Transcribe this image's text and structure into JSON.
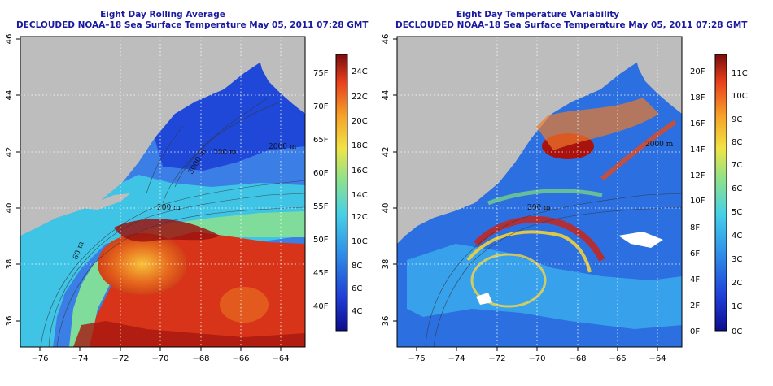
{
  "panels": [
    {
      "id": "rolling",
      "title": "Eight Day Rolling Average",
      "subtitle": "DECLOUDED NOAA–18 Sea Surface Temperature May 05, 2011 07:28 GMT",
      "colorbar_f": [
        "75F",
        "70F",
        "65F",
        "60F",
        "55F",
        "50F",
        "45F",
        "40F"
      ],
      "colorbar_c": [
        "24C",
        "22C",
        "20C",
        "18C",
        "16C",
        "14C",
        "12C",
        "10C",
        "8C",
        "6C",
        "4C"
      ],
      "contour_labels": [
        "2000 m",
        "200 m",
        "60 m",
        "200 m",
        "3000 m"
      ]
    },
    {
      "id": "variability",
      "title": "Eight Day Temperature Variability",
      "subtitle": "DECLOUDED NOAA–18 Sea Surface Temperature May 05, 2011 07:28 GMT",
      "colorbar_f": [
        "20F",
        "18F",
        "16F",
        "14F",
        "12F",
        "10F",
        "8F",
        "6F",
        "4F",
        "2F",
        "0F"
      ],
      "colorbar_c": [
        "11C",
        "10C",
        "9C",
        "8C",
        "7C",
        "6C",
        "5C",
        "4C",
        "3C",
        "2C",
        "1C",
        "0C"
      ],
      "contour_labels": [
        "2000 m",
        "200 m"
      ]
    }
  ],
  "map_axes": {
    "x_ticks": [
      "−76",
      "−74",
      "−72",
      "−70",
      "−68",
      "−66",
      "−64"
    ],
    "y_ticks": [
      "46",
      "44",
      "42",
      "40",
      "38",
      "36"
    ],
    "lon_range": [
      -77,
      -63
    ],
    "lat_range": [
      35,
      46
    ]
  },
  "colors": {
    "land": "#bdbdbd",
    "title": "#1a1aa0"
  }
}
